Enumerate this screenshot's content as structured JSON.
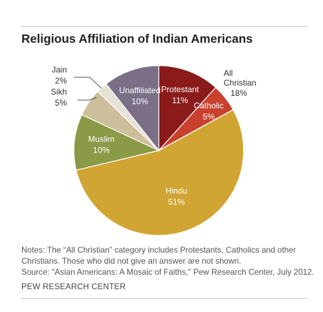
{
  "title": "Religious Affiliation of Indian Americans",
  "chart_data": {
    "type": "pie",
    "title": "Religious Affiliation of Indian Americans",
    "slices": [
      {
        "label": "Protestant",
        "value": 11,
        "value_label": "11%",
        "color": "#8b1a1a"
      },
      {
        "label": "Catholic",
        "value": 5,
        "value_label": "5%",
        "color": "#c9402e"
      },
      {
        "label": "Hindu",
        "value": 51,
        "value_label": "51%",
        "color": "#d1a533"
      },
      {
        "label": "Muslim",
        "value": 10,
        "value_label": "10%",
        "color": "#8b9a46"
      },
      {
        "label": "Sikh",
        "value": 5,
        "value_label": "5%",
        "color": "#cdbf9b"
      },
      {
        "label": "Jain",
        "value": 2,
        "value_label": "2%",
        "color": "#e6e2d6"
      },
      {
        "label": "Unaffiliated",
        "value": 10,
        "value_label": "10%",
        "color": "#7b6f86"
      }
    ],
    "group_annotation": {
      "lines": [
        "All",
        "Christian",
        "18%"
      ]
    }
  },
  "notes": [
    "Notes: The “All Christian” category includes Protestants, Catholics and other",
    "Christians. Those who did not give an answer are not shown.",
    "Source: \"Asian Americans: A Mosaic of Faiths,\" Pew Research Center, July 2012."
  ],
  "credit": "PEW RESEARCH CENTER"
}
